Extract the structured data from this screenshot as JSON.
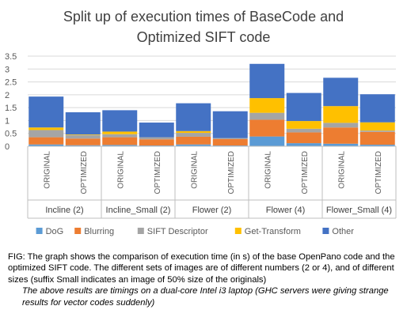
{
  "chart_data": {
    "type": "bar",
    "stacked": true,
    "title": "Split up of execution times of BaseCode and Optimized SIFT code",
    "title_lines": [
      "Split up of execution times of BaseCode and",
      "Optimized SIFT code"
    ],
    "xlabel": "",
    "ylabel": "",
    "ylim": [
      0,
      3.5
    ],
    "yticks": [
      "0",
      "0.5",
      "1",
      "1.5",
      "2",
      "2.5",
      "3",
      "3.5"
    ],
    "grid": true,
    "legend_position": "bottom",
    "groups": [
      "Incline (2)",
      "Incline_Small (2)",
      "Flower (2)",
      "Flower (4)",
      "Flower_Small (4)"
    ],
    "categories": [
      "ORIGINAL",
      "OPTIMIZED",
      "ORIGINAL",
      "OPTIMIZED",
      "ORIGINAL",
      "OPTIMIZED",
      "ORIGINAL",
      "OPTIMIZED",
      "ORIGINAL",
      "OPTIMIZED"
    ],
    "series": [
      {
        "name": "DoG",
        "color": "#5B9BD5",
        "values": [
          0.07,
          0.04,
          0.05,
          0.03,
          0.07,
          0.03,
          0.38,
          0.12,
          0.1,
          0.06
        ]
      },
      {
        "name": "Blurring",
        "color": "#ED7D31",
        "values": [
          0.28,
          0.26,
          0.3,
          0.24,
          0.3,
          0.25,
          0.65,
          0.42,
          0.63,
          0.5
        ]
      },
      {
        "name": "SIFT Descriptor",
        "color": "#A5A5A5",
        "values": [
          0.28,
          0.14,
          0.12,
          0.08,
          0.15,
          0.04,
          0.27,
          0.14,
          0.18,
          0.05
        ]
      },
      {
        "name": "Get-Transform",
        "color": "#FFC000",
        "values": [
          0.1,
          0.02,
          0.1,
          0.0,
          0.07,
          0.0,
          0.57,
          0.3,
          0.65,
          0.32
        ]
      },
      {
        "name": "Other",
        "color": "#4472C4",
        "values": [
          1.2,
          0.86,
          0.83,
          0.57,
          1.08,
          1.04,
          1.33,
          1.09,
          1.1,
          1.09
        ]
      }
    ]
  },
  "caption": {
    "main": "FIG: The graph shows the comparison of execution time (in s) of the base OpenPano code and the optimized SIFT code. The different sets of images are of different numbers (2 or 4), and of different sizes (suffix Small indicates an image of 50% size of the originals)",
    "note": "The above results are timings on a dual-core Intel i3 laptop (GHC servers were giving strange results for vector codes suddenly)"
  }
}
